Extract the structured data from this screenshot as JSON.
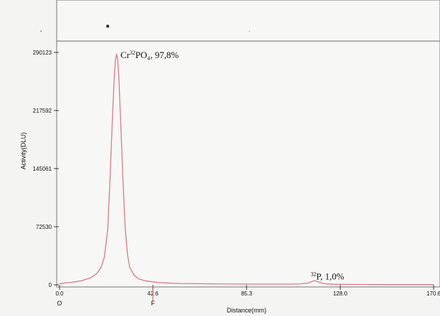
{
  "chart_data": {
    "type": "line",
    "xlabel": "Distance(mm)",
    "ylabel": "Activity(DLU)",
    "xlim": [
      0,
      170.6
    ],
    "ylim": [
      0,
      290123
    ],
    "x_ticks": [
      "0.0",
      "42.6",
      "85.3",
      "128.0",
      "170.6"
    ],
    "x_tick_values": [
      0,
      42.6,
      85.3,
      128.0,
      170.6
    ],
    "y_ticks": [
      "0",
      "72530",
      "145061",
      "217592",
      "290123"
    ],
    "y_tick_values": [
      0,
      72530,
      145061,
      217592,
      290123
    ],
    "x_under_labels": [
      {
        "label": "O",
        "x": 0
      },
      {
        "label": "F",
        "x": 42.6
      }
    ],
    "series": [
      {
        "color": "#d9788a",
        "x": [
          0,
          5,
          10,
          14,
          17,
          19,
          20.5,
          22,
          23,
          24,
          25,
          25.5,
          26,
          26.5,
          27,
          28,
          29,
          30,
          31,
          32,
          34,
          36,
          39,
          45,
          55,
          70,
          90,
          105,
          110,
          113,
          115,
          116,
          118,
          120,
          122,
          125,
          130,
          140,
          150,
          160,
          170.6
        ],
        "y": [
          1500,
          3000,
          5000,
          8500,
          14000,
          22000,
          35000,
          70000,
          130000,
          200000,
          262000,
          280000,
          288000,
          282000,
          262000,
          195000,
          125000,
          70000,
          38000,
          22000,
          12000,
          7500,
          5000,
          2800,
          1700,
          1200,
          900,
          900,
          1200,
          2200,
          3800,
          5200,
          3800,
          1800,
          1100,
          700,
          500,
          400,
          300,
          300,
          300
        ]
      }
    ],
    "annotations": [
      {
        "label": "Cr",
        "sup": "32",
        "rest": "PO₄, 97,8%",
        "x": 27.8,
        "y": 290000
      },
      {
        "label": "",
        "sup": "32",
        "rest": "P, 1,0%",
        "x": 114.5,
        "y": 13500
      }
    ],
    "grid": false
  }
}
